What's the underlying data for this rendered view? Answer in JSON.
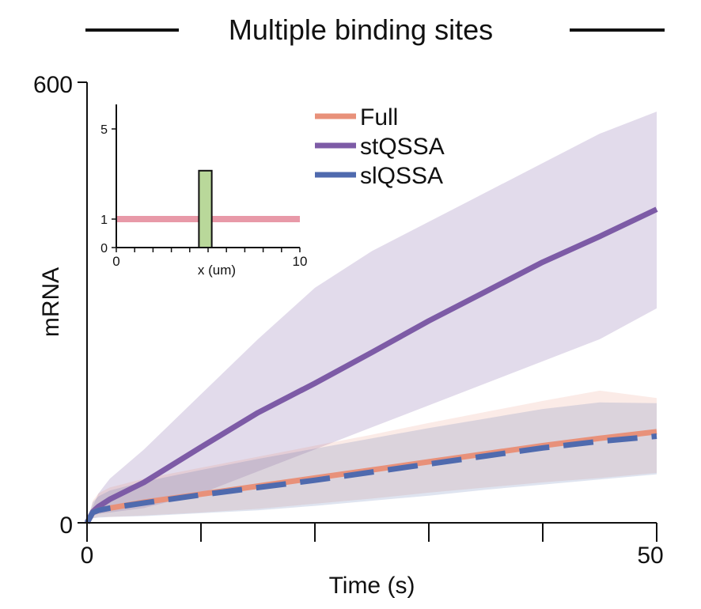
{
  "chart_data": {
    "type": "line",
    "title": "Multiple binding sites",
    "xlabel": "Time (s)",
    "ylabel": "mRNA",
    "xlim": [
      0,
      50
    ],
    "ylim": [
      0,
      600
    ],
    "x_ticks": [
      "0",
      "50"
    ],
    "y_ticks": [
      "0",
      "600"
    ],
    "legend_position": "top-right",
    "series": [
      {
        "name": "Full",
        "color": "#E8917A",
        "style": "solid",
        "x": [
          0,
          0.5,
          1,
          2,
          5,
          10,
          15,
          20,
          25,
          30,
          35,
          40,
          45,
          50
        ],
        "y": [
          0,
          14,
          17,
          20,
          28,
          39,
          50,
          61,
          72,
          83,
          94,
          105,
          115,
          124
        ],
        "band_lower": [
          0,
          6,
          8,
          8,
          10,
          14,
          19,
          26,
          33,
          41,
          48,
          55,
          61,
          68
        ],
        "band_upper": [
          0,
          30,
          40,
          48,
          60,
          75,
          90,
          105,
          120,
          136,
          151,
          166,
          180,
          170
        ]
      },
      {
        "name": "stQSSA",
        "color": "#7D5BA6",
        "style": "solid",
        "x": [
          0,
          0.5,
          1,
          2,
          5,
          10,
          15,
          20,
          25,
          30,
          35,
          40,
          45,
          50
        ],
        "y": [
          0,
          15,
          22,
          32,
          55,
          103,
          150,
          190,
          232,
          275,
          315,
          355,
          390,
          427
        ],
        "band_lower": [
          0,
          10,
          12,
          14,
          20,
          40,
          70,
          100,
          130,
          160,
          190,
          220,
          250,
          292
        ],
        "band_upper": [
          0,
          22,
          40,
          60,
          100,
          175,
          250,
          320,
          370,
          410,
          450,
          490,
          530,
          560
        ]
      },
      {
        "name": "slQSSA",
        "color": "#4F6AAE",
        "style": "dashed",
        "x": [
          0,
          0.5,
          1,
          2,
          5,
          10,
          15,
          20,
          25,
          30,
          35,
          40,
          45,
          50
        ],
        "y": [
          0,
          14,
          17,
          20,
          27,
          38,
          48,
          58,
          69,
          80,
          91,
          102,
          111,
          118
        ],
        "band_lower": [
          0,
          6,
          7,
          8,
          9,
          13,
          17,
          23,
          30,
          37,
          45,
          52,
          59,
          66
        ],
        "band_upper": [
          0,
          28,
          36,
          44,
          56,
          72,
          87,
          101,
          115,
          129,
          142,
          155,
          164,
          163
        ]
      }
    ],
    "inset": {
      "xlabel": "x (um)",
      "xlim": [
        0,
        10
      ],
      "ylim": [
        0,
        6
      ],
      "x_ticks": [
        "0",
        "10"
      ],
      "y_ticks": [
        "0",
        "1",
        "5"
      ],
      "line": {
        "y": 1,
        "color": "#E899A8"
      },
      "bar": {
        "x_start": 4.5,
        "x_end": 5.2,
        "height": 2.7,
        "color": "#B9D89A"
      }
    }
  }
}
